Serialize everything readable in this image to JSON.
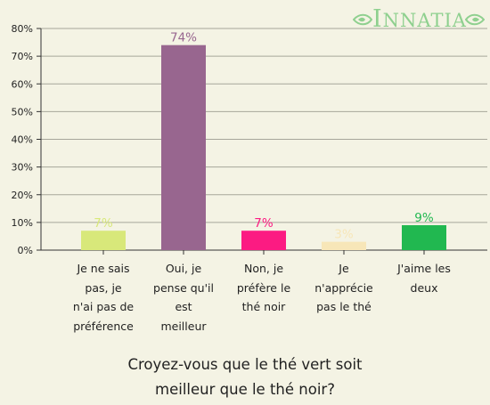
{
  "brand": {
    "name": "NNATIA",
    "initial": "I",
    "color": "#8fd08f"
  },
  "question": {
    "line1": "Croyez-vous que le thé vert soit",
    "line2": "meilleur que le thé noir?"
  },
  "chart_data": {
    "type": "bar",
    "title": "Croyez-vous que le thé vert soit meilleur que le thé noir?",
    "categories": [
      "Je ne sais\npas, je\nn'ai pas de\npréférence",
      "Oui, je\npense qu'il\nest\nmeilleur",
      "Non, je\npréfère le\nthé noir",
      "Je\nn'apprécie\npas le thé",
      "J'aime les\ndeux"
    ],
    "values": [
      7,
      74,
      7,
      3,
      9
    ],
    "data_labels": [
      "7%",
      "74%",
      "7%",
      "3%",
      "9%"
    ],
    "colors": [
      "#d8e87a",
      "#98668f",
      "#fc1b82",
      "#f7e6b8",
      "#21b850"
    ],
    "label_colors": [
      "#d8e87a",
      "#98668f",
      "#fc1b82",
      "#f7e6b8",
      "#21b850"
    ],
    "y_ticks": [
      "0%",
      "10%",
      "20%",
      "30%",
      "40%",
      "50%",
      "60%",
      "70%",
      "80%"
    ],
    "ylim": [
      0,
      80
    ],
    "grid": true,
    "xlabel": "",
    "ylabel": ""
  }
}
